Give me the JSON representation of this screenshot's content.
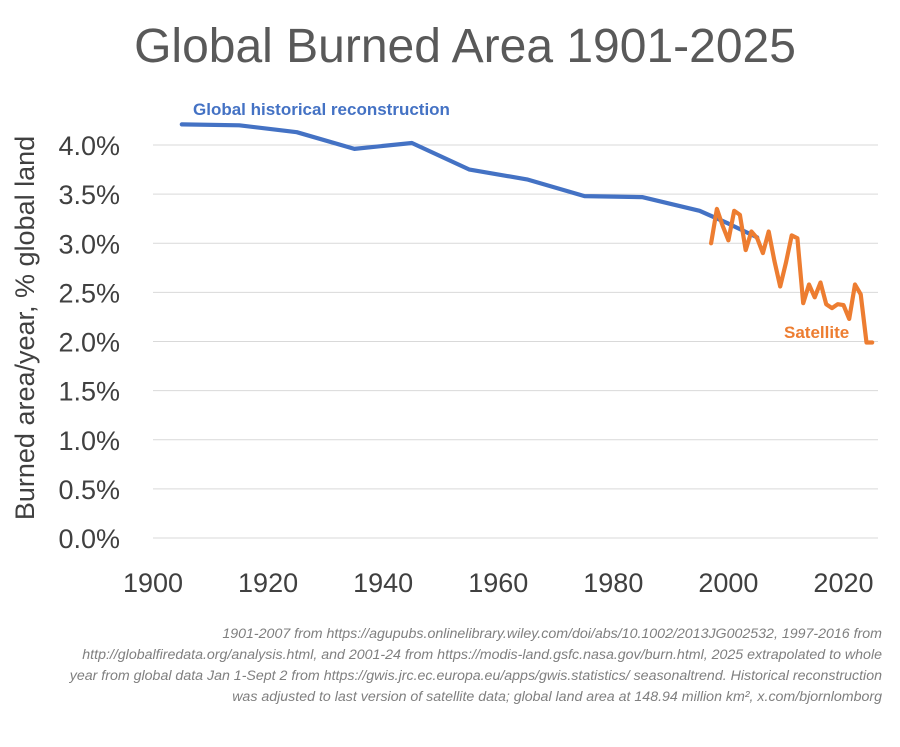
{
  "chart_data": {
    "type": "line",
    "title": "Global Burned Area 1901-2025",
    "xlabel": "",
    "ylabel": "Burned area/year, % global land",
    "xlim": [
      1900,
      2026
    ],
    "ylim": [
      0,
      4.0
    ],
    "xticks": [
      1900,
      1920,
      1940,
      1960,
      1980,
      2000,
      2020
    ],
    "yticks": [
      {
        "value": 0.0,
        "label": "0.0%"
      },
      {
        "value": 0.5,
        "label": "0.5%"
      },
      {
        "value": 1.0,
        "label": "1.0%"
      },
      {
        "value": 1.5,
        "label": "1.5%"
      },
      {
        "value": 2.0,
        "label": "2.0%"
      },
      {
        "value": 2.5,
        "label": "2.5%"
      },
      {
        "value": 3.0,
        "label": "3.0%"
      },
      {
        "value": 3.5,
        "label": "3.5%"
      },
      {
        "value": 4.0,
        "label": "4.0%"
      }
    ],
    "grid": true,
    "series": [
      {
        "name": "Global historical reconstruction",
        "color": "#4472c4",
        "x": [
          1905,
          1915,
          1925,
          1935,
          1945,
          1955,
          1965,
          1975,
          1985,
          1995,
          2000,
          2005
        ],
        "y": [
          4.21,
          4.2,
          4.13,
          3.96,
          4.02,
          3.75,
          3.65,
          3.48,
          3.47,
          3.33,
          3.2,
          3.06
        ]
      },
      {
        "name": "Satellite",
        "color": "#ed7d31",
        "x": [
          1997,
          1998,
          1999,
          2000,
          2001,
          2002,
          2003,
          2004,
          2005,
          2006,
          2007,
          2008,
          2009,
          2010,
          2011,
          2012,
          2013,
          2014,
          2015,
          2016,
          2017,
          2018,
          2019,
          2020,
          2021,
          2022,
          2023,
          2024,
          2025
        ],
        "y": [
          3.0,
          3.35,
          3.18,
          3.03,
          3.33,
          3.29,
          2.93,
          3.12,
          3.05,
          2.9,
          3.12,
          2.82,
          2.56,
          2.8,
          3.08,
          3.05,
          2.39,
          2.58,
          2.45,
          2.6,
          2.38,
          2.34,
          2.38,
          2.37,
          2.23,
          2.58,
          2.48,
          1.99,
          1.99
        ]
      }
    ]
  },
  "source_note": "1901-2007 from https://agupubs.onlinelibrary.wiley.com/doi/abs/10.1002/2013JG002532, 1997-2016 from http://globalfiredata.org/analysis.html, and 2001-24 from https://modis-land.gsfc.nasa.gov/burn.html, 2025 extrapolated to whole year from global data Jan 1-Sept 2 from https://gwis.jrc.ec.europa.eu/apps/gwis.statistics/ seasonaltrend. Historical reconstruction was adjusted to last version of satellite data; global land area at 148.94 million km², x.com/bjornlomborg"
}
